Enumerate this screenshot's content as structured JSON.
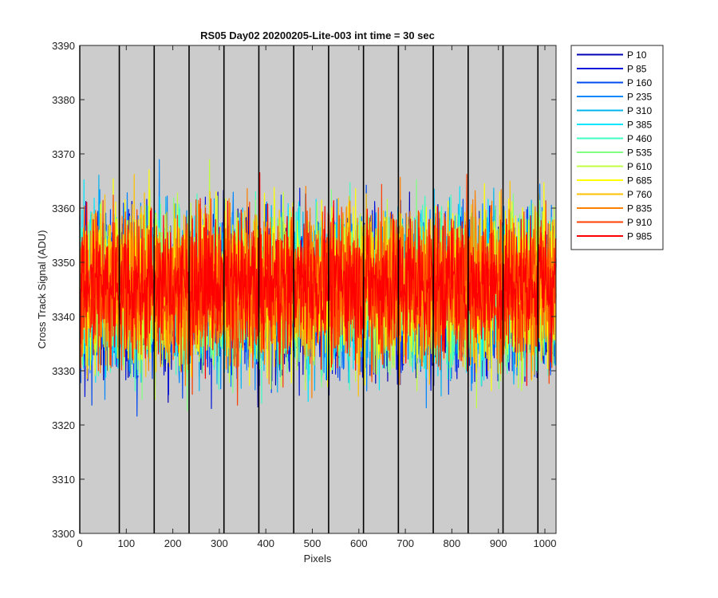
{
  "chart_data": {
    "type": "line",
    "title": "RS05 Day02 20200205-Lite-003 int time = 30 sec",
    "xlabel": "Pixels",
    "ylabel": "Cross Track Signal (ADU)",
    "xlim": [
      0,
      1024
    ],
    "ylim": [
      3300,
      3390
    ],
    "xticks": [
      0,
      100,
      200,
      300,
      400,
      500,
      600,
      700,
      800,
      900,
      1000
    ],
    "yticks": [
      3300,
      3310,
      3320,
      3330,
      3340,
      3350,
      3360,
      3370,
      3380,
      3390
    ],
    "vertical_lines": [
      0,
      85,
      160,
      235,
      310,
      385,
      460,
      535,
      610,
      685,
      760,
      835,
      910,
      985
    ],
    "background": "#cccccc",
    "legend_position": "outside-right-top",
    "series": [
      {
        "name": "P 10",
        "color": "#0000b4",
        "mean": 3344,
        "sd": 7,
        "min": 3309,
        "max": 3372
      },
      {
        "name": "P 85",
        "color": "#0012dc",
        "mean": 3344,
        "sd": 7,
        "min": 3312,
        "max": 3370
      },
      {
        "name": "P 160",
        "color": "#0048f0",
        "mean": 3344,
        "sd": 7,
        "min": 3313,
        "max": 3371
      },
      {
        "name": "P 235",
        "color": "#0086ff",
        "mean": 3345,
        "sd": 7,
        "min": 3314,
        "max": 3372
      },
      {
        "name": "P 310",
        "color": "#00b4f0",
        "mean": 3345,
        "sd": 7,
        "min": 3311,
        "max": 3381
      },
      {
        "name": "P 385",
        "color": "#00e6ff",
        "mean": 3345,
        "sd": 7,
        "min": 3312,
        "max": 3384
      },
      {
        "name": "P 460",
        "color": "#40ffc0",
        "mean": 3345,
        "sd": 7,
        "min": 3318,
        "max": 3376
      },
      {
        "name": "P 535",
        "color": "#80ff80",
        "mean": 3345,
        "sd": 7,
        "min": 3319,
        "max": 3375
      },
      {
        "name": "P 610",
        "color": "#c0ff40",
        "mean": 3345,
        "sd": 7,
        "min": 3320,
        "max": 3374
      },
      {
        "name": "P 685",
        "color": "#ffff00",
        "mean": 3346,
        "sd": 7,
        "min": 3320,
        "max": 3376
      },
      {
        "name": "P 760",
        "color": "#ffc000",
        "mean": 3346,
        "sd": 7,
        "min": 3315,
        "max": 3380
      },
      {
        "name": "P 835",
        "color": "#ff8000",
        "mean": 3346,
        "sd": 7,
        "min": 3311,
        "max": 3379
      },
      {
        "name": "P 910",
        "color": "#ff4000",
        "mean": 3346,
        "sd": 7,
        "min": 3312,
        "max": 3378
      },
      {
        "name": "P 985",
        "color": "#ff0000",
        "mean": 3346,
        "sd": 6,
        "min": 3318,
        "max": 3375
      }
    ]
  }
}
